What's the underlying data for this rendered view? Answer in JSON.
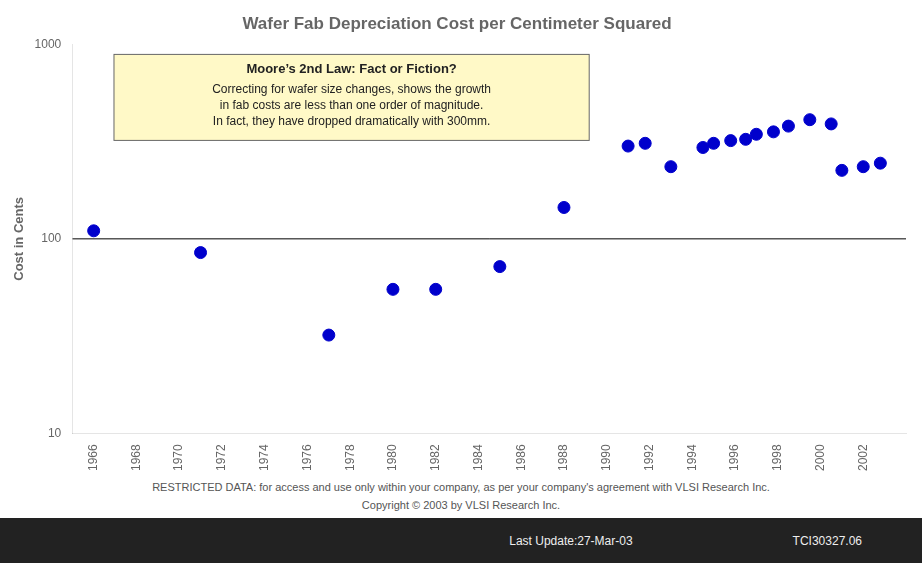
{
  "chart_data": {
    "type": "scatter",
    "title": "Wafer Fab Depreciation Cost per Centimeter Squared",
    "y_label": "Cost in Cents",
    "x": [
      1966,
      1971,
      1977,
      1980,
      1982,
      1985,
      1988,
      1991,
      1991.8,
      1993,
      1994.5,
      1995,
      1995.8,
      1996.5,
      1997,
      1997.8,
      1998.5,
      1999.5,
      2000.5,
      2001,
      2002,
      2002.8
    ],
    "values": [
      110,
      85,
      32,
      55,
      55,
      72,
      145,
      300,
      310,
      235,
      295,
      310,
      320,
      325,
      345,
      355,
      380,
      410,
      390,
      225,
      235,
      245
    ],
    "color": "#0000CC",
    "marker": "circle",
    "xlim": [
      1965,
      2004
    ],
    "xticks": [
      1966,
      1968,
      1970,
      1972,
      1974,
      1976,
      1978,
      1980,
      1982,
      1984,
      1986,
      1988,
      1990,
      1992,
      1994,
      1996,
      1998,
      2000,
      2002
    ],
    "ylim": [
      10,
      1000
    ],
    "yticks": [
      10,
      100,
      1000
    ],
    "log": "y",
    "grid": false,
    "hline": 100,
    "annotation": {
      "title": "Moore’s 2nd Law: Fact or Fiction?",
      "lines": [
        "Correcting for wafer size changes, shows the growth",
        "in fab costs are less than one order of magnitude.",
        "In fact, they have dropped dramatically with 300mm."
      ]
    },
    "footer": [
      "RESTRICTED DATA: for access and use only within your company, as per your company's agreement with VLSI Research Inc.",
      "Copyright © 2003 by VLSI Research Inc."
    ],
    "bottom_texts": [
      "Last Update:27-Mar-03",
      "TCI30327.06"
    ]
  }
}
